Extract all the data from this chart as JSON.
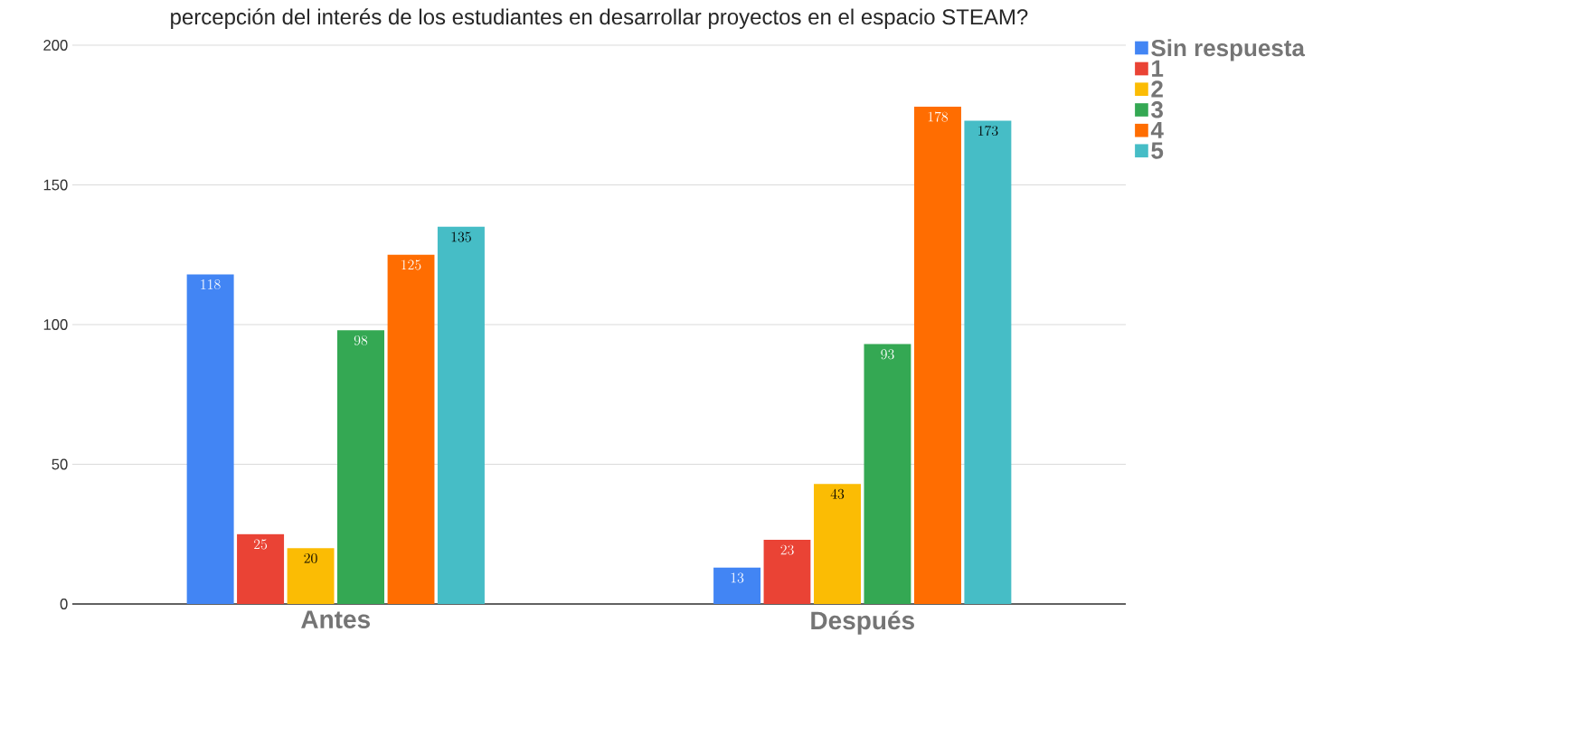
{
  "chart_data": {
    "type": "bar",
    "title": "percepción del interés de los estudiantes en desarrollar proyectos en el espacio STEAM?",
    "categories": [
      "Antes",
      "Después"
    ],
    "series": [
      {
        "name": "Sin respuesta",
        "color": "#4285f4",
        "values": [
          118,
          13
        ]
      },
      {
        "name": "1",
        "color": "#ea4335",
        "values": [
          25,
          23
        ]
      },
      {
        "name": "2",
        "color": "#fbbc04",
        "values": [
          20,
          43
        ]
      },
      {
        "name": "3",
        "color": "#34a853",
        "values": [
          98,
          93
        ]
      },
      {
        "name": "4",
        "color": "#ff6d01",
        "values": [
          125,
          178
        ]
      },
      {
        "name": "5",
        "color": "#46bdc6",
        "values": [
          135,
          173
        ]
      }
    ],
    "ylim": [
      0,
      200
    ],
    "yticks": [
      0,
      50,
      100,
      150,
      200
    ],
    "grid": "y",
    "legend": "top right",
    "data_labels": true
  }
}
